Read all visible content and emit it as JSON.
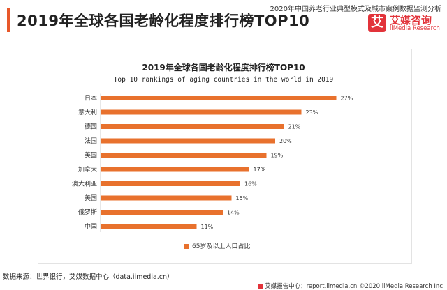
{
  "header": {
    "title": "2019年全球各国老龄化程度排行榜TOP10",
    "report_source": "2020年中国养老行业典型模式及城市案例数据监测分析"
  },
  "logo": {
    "mark": "艾",
    "cn": "艾媒咨询",
    "en": "iiMedia Research"
  },
  "footer": {
    "data_source": "数据来源：世界银行，艾媒数据中心（data.iimedia.cn）",
    "copyright": "艾媒报告中心：report.iimedia.cn  ©2020  iiMedia Research Inc"
  },
  "colors": {
    "bar": "#E8712D",
    "accent": "#E8582A",
    "brand": "#E2333A"
  },
  "chart_data": {
    "type": "bar",
    "orientation": "horizontal",
    "title": "2019年全球各国老龄化程度排行榜TOP10",
    "subtitle": "Top 10 rankings of aging countries in the world in 2019",
    "categories": [
      "日本",
      "意大利",
      "德国",
      "法国",
      "英国",
      "加拿大",
      "澳大利亚",
      "美国",
      "俄罗斯",
      "中国"
    ],
    "series": [
      {
        "name": "65岁及以上人口占比",
        "values": [
          27,
          23,
          21,
          20,
          19,
          17,
          16,
          15,
          14,
          11
        ],
        "labels": [
          "27%",
          "23%",
          "21%",
          "20%",
          "19%",
          "17%",
          "16%",
          "15%",
          "14%",
          "11%"
        ]
      }
    ],
    "xlim": [
      0,
      30
    ],
    "grid": false,
    "legend_position": "bottom"
  }
}
